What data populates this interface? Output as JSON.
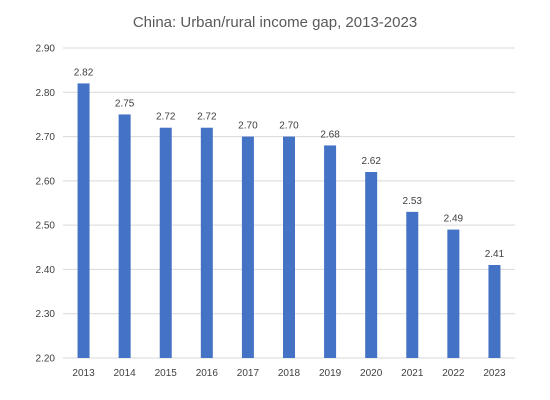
{
  "chart_data": {
    "type": "bar",
    "title": "China: Urban/rural income gap, 2013-2023",
    "xlabel": "",
    "ylabel": "",
    "categories": [
      "2013",
      "2014",
      "2015",
      "2016",
      "2017",
      "2018",
      "2019",
      "2020",
      "2021",
      "2022",
      "2023"
    ],
    "values": [
      2.82,
      2.75,
      2.72,
      2.72,
      2.7,
      2.7,
      2.68,
      2.62,
      2.53,
      2.49,
      2.41
    ],
    "data_labels": [
      "2.82",
      "2.75",
      "2.72",
      "2.72",
      "2.70",
      "2.70",
      "2.68",
      "2.62",
      "2.53",
      "2.49",
      "2.41"
    ],
    "ylim": [
      2.2,
      2.9
    ],
    "yticks": [
      "2.20",
      "2.30",
      "2.40",
      "2.50",
      "2.60",
      "2.70",
      "2.80",
      "2.90"
    ],
    "grid": true,
    "legend": "none",
    "bar_color": "#4472C4"
  }
}
